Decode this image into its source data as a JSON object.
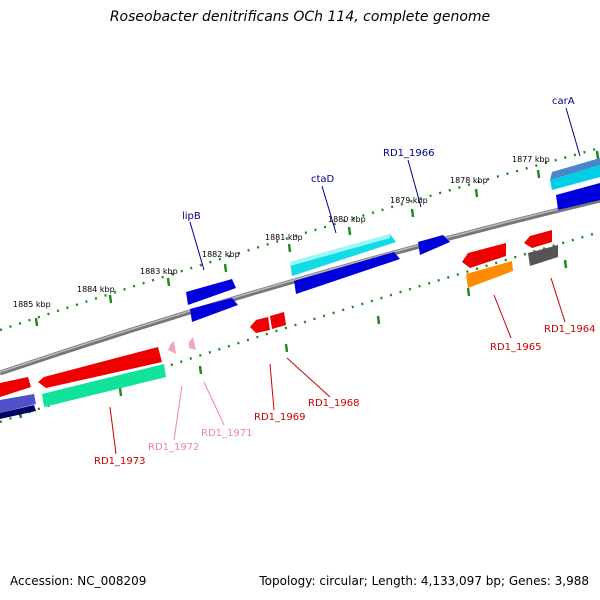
{
  "title": "Roseobacter denitrificans OCh 114, complete genome",
  "footer": {
    "accession": "Accession: NC_008209",
    "stats": "Topology: circular; Length: 4,133,097 bp; Genes: 3,988"
  },
  "ticks": [
    "1877 kbp",
    "1878 kbp",
    "1879 kbp",
    "1880 kbp",
    "1881 kbp",
    "1882 kbp",
    "1883 kbp",
    "1884 kbp",
    "1885 kbp"
  ],
  "genes": {
    "carA": "carA",
    "RD1_1966": "RD1_1966",
    "ctaD": "ctaD",
    "lipB": "lipB",
    "RD1_1964": "RD1_1964",
    "RD1_1965": "RD1_1965",
    "RD1_1968": "RD1_1968",
    "RD1_1969": "RD1_1969",
    "RD1_1971": "RD1_1971",
    "RD1_1972": "RD1_1972",
    "RD1_1973": "RD1_1973"
  },
  "colors": {
    "backbone": "#808080",
    "tick": "#1a8a1a",
    "forward_label": "#00008b",
    "reverse_label": "#cc0000",
    "pseudo_label": "#ee82b8"
  }
}
